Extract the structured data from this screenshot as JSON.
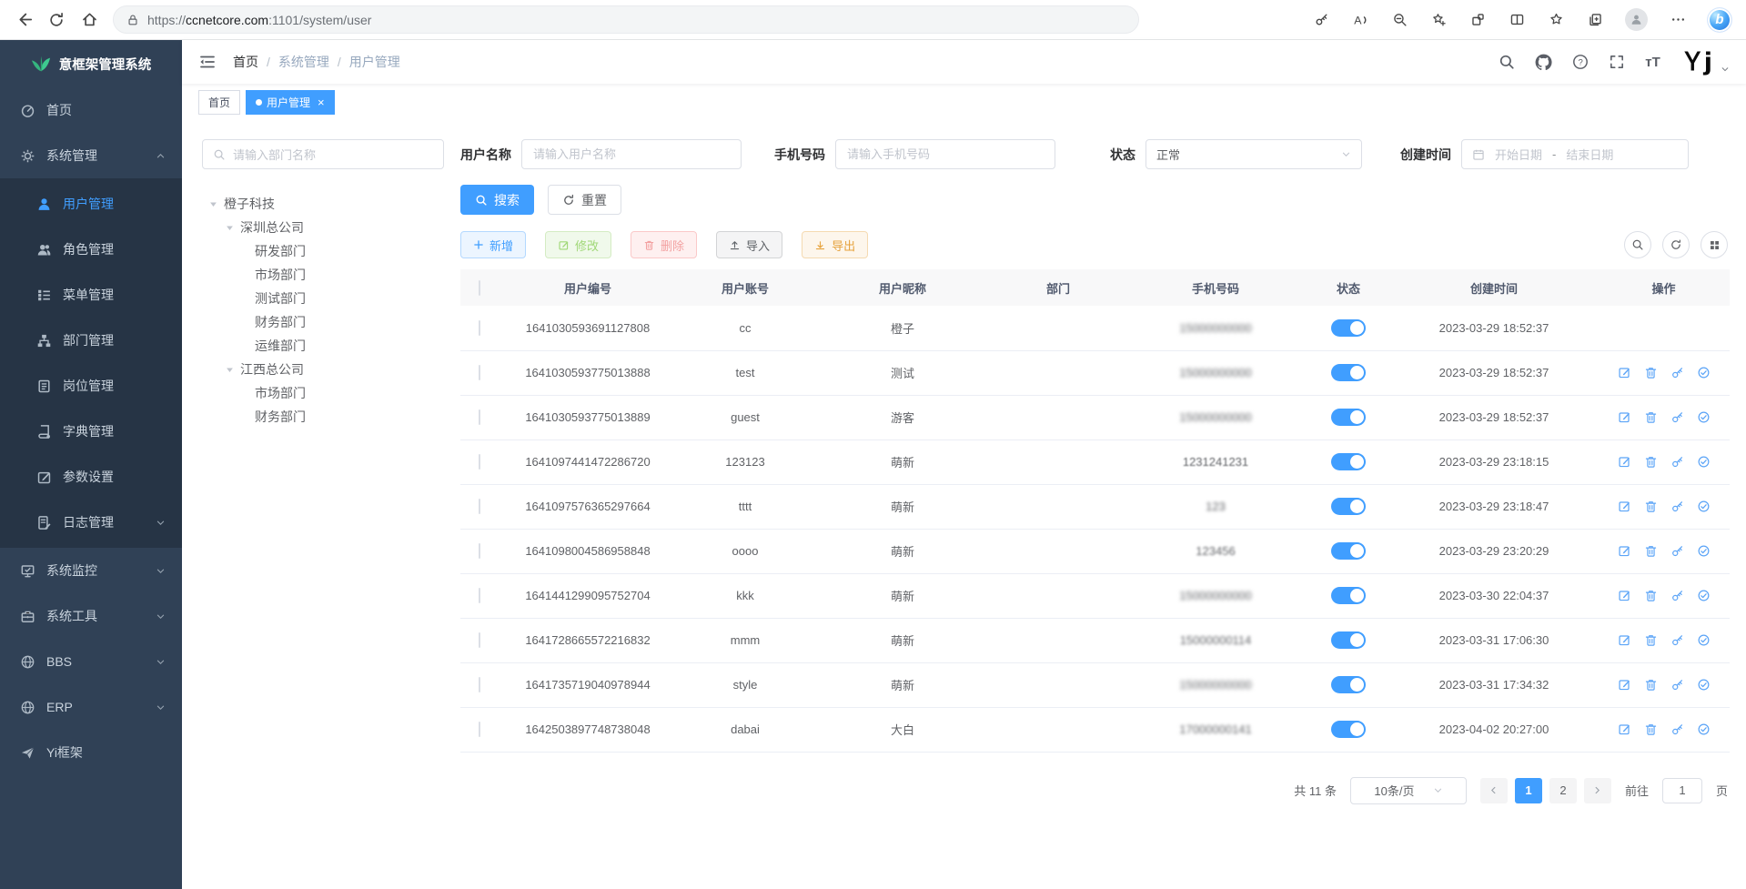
{
  "browser": {
    "url": {
      "scheme": "https://",
      "host": "ccnetcore.com",
      "path": ":1101/system/user"
    },
    "icons": [
      "back",
      "refresh",
      "home",
      "lock",
      "password",
      "read-aloud",
      "zoom-out",
      "add-favorite",
      "extensions",
      "split-screen",
      "favorites",
      "collections",
      "profile",
      "more",
      "copilot"
    ],
    "copilot_letter": "b"
  },
  "colors": {
    "accent": "#409EFF",
    "sidebar_bg": "#304156",
    "submenu_bg": "#263445",
    "logo_green": "#35b47f",
    "success": "#67C23A",
    "danger": "#F56C6C",
    "warning": "#E6A23C"
  },
  "app": {
    "logo_title": "意框架管理系统",
    "sidebar": {
      "items": [
        {
          "label": "首页",
          "icon": "dashboard"
        },
        {
          "label": "系统管理",
          "icon": "gear",
          "expanded": true,
          "children": [
            {
              "label": "用户管理",
              "icon": "user",
              "active": true
            },
            {
              "label": "角色管理",
              "icon": "roles"
            },
            {
              "label": "菜单管理",
              "icon": "menulist"
            },
            {
              "label": "部门管理",
              "icon": "dept"
            },
            {
              "label": "岗位管理",
              "icon": "post"
            },
            {
              "label": "字典管理",
              "icon": "dict"
            },
            {
              "label": "参数设置",
              "icon": "config"
            },
            {
              "label": "日志管理",
              "icon": "log",
              "chevron": true
            }
          ]
        },
        {
          "label": "系统监控",
          "icon": "monitor",
          "chevron": true
        },
        {
          "label": "系统工具",
          "icon": "tool",
          "chevron": true
        },
        {
          "label": "BBS",
          "icon": "globe",
          "chevron": true
        },
        {
          "label": "ERP",
          "icon": "globe",
          "chevron": true
        },
        {
          "label": "Yi框架",
          "icon": "send"
        }
      ]
    },
    "breadcrumb": [
      "首页",
      "系统管理",
      "用户管理"
    ],
    "tabs": {
      "home": "首页",
      "active": "用户管理"
    },
    "filters": {
      "dept_search_placeholder": "请输入部门名称",
      "username_label": "用户名称",
      "username_placeholder": "请输入用户名称",
      "phone_label": "手机号码",
      "phone_placeholder": "请输入手机号码",
      "status_label": "状态",
      "status_value": "正常",
      "created_label": "创建时间",
      "date_start_placeholder": "开始日期",
      "date_separator": "-",
      "date_end_placeholder": "结束日期",
      "search_button": "搜索",
      "reset_button": "重置"
    },
    "tree": [
      {
        "label": "橙子科技",
        "level": 0,
        "caret": true
      },
      {
        "label": "深圳总公司",
        "level": 1,
        "caret": true
      },
      {
        "label": "研发部门",
        "level": 2
      },
      {
        "label": "市场部门",
        "level": 2
      },
      {
        "label": "测试部门",
        "level": 2
      },
      {
        "label": "财务部门",
        "level": 2
      },
      {
        "label": "运维部门",
        "level": 2
      },
      {
        "label": "江西总公司",
        "level": 1,
        "caret": true
      },
      {
        "label": "市场部门",
        "level": 2
      },
      {
        "label": "财务部门",
        "level": 2
      }
    ],
    "toolbar": {
      "add": "新增",
      "edit": "修改",
      "delete": "删除",
      "import": "导入",
      "export": "导出",
      "view_icons": [
        "search",
        "refresh",
        "grid"
      ]
    },
    "table": {
      "columns": [
        "用户编号",
        "用户账号",
        "用户昵称",
        "部门",
        "手机号码",
        "状态",
        "创建时间",
        "操作"
      ],
      "op_icons": [
        "edit",
        "delete",
        "key",
        "check-circle"
      ],
      "rows": [
        {
          "id": "1641030593691127808",
          "account": "cc",
          "nickname": "橙子",
          "dept": "",
          "phone": "15000000000",
          "blur": 2.4,
          "status_on": true,
          "created": "2023-03-29 18:52:37",
          "ops": false
        },
        {
          "id": "1641030593775013888",
          "account": "test",
          "nickname": "测试",
          "dept": "",
          "phone": "15000000000",
          "blur": 2.0,
          "status_on": true,
          "created": "2023-03-29 18:52:37",
          "ops": true
        },
        {
          "id": "1641030593775013889",
          "account": "guest",
          "nickname": "游客",
          "dept": "",
          "phone": "15000000000",
          "blur": 2.2,
          "status_on": true,
          "created": "2023-03-29 18:52:37",
          "ops": true
        },
        {
          "id": "1641097441472286720",
          "account": "123123",
          "nickname": "萌新",
          "dept": "",
          "phone": "1231241231",
          "blur": 0.7,
          "status_on": true,
          "created": "2023-03-29 23:18:15",
          "ops": true
        },
        {
          "id": "1641097576365297664",
          "account": "tttt",
          "nickname": "萌新",
          "dept": "",
          "phone": "123",
          "blur": 1.8,
          "status_on": true,
          "created": "2023-03-29 23:18:47",
          "ops": true
        },
        {
          "id": "1641098004586958848",
          "account": "oooo",
          "nickname": "萌新",
          "dept": "",
          "phone": "123456",
          "blur": 1.2,
          "status_on": true,
          "created": "2023-03-29 23:20:29",
          "ops": true
        },
        {
          "id": "1641441299095752704",
          "account": "kkk",
          "nickname": "萌新",
          "dept": "",
          "phone": "15000000000",
          "blur": 2.2,
          "status_on": true,
          "created": "2023-03-30 22:04:37",
          "ops": true
        },
        {
          "id": "1641728665572216832",
          "account": "mmm",
          "nickname": "萌新",
          "dept": "",
          "phone": "15000000114",
          "blur": 1.6,
          "status_on": true,
          "created": "2023-03-31 17:06:30",
          "ops": true
        },
        {
          "id": "1641735719040978944",
          "account": "style",
          "nickname": "萌新",
          "dept": "",
          "phone": "15000000000",
          "blur": 2.3,
          "status_on": true,
          "created": "2023-03-31 17:34:32",
          "ops": true
        },
        {
          "id": "1642503897748738048",
          "account": "dabai",
          "nickname": "大白",
          "dept": "",
          "phone": "17000000141",
          "blur": 1.8,
          "status_on": true,
          "created": "2023-04-02 20:27:00",
          "ops": true
        }
      ]
    },
    "pagination": {
      "total_label": "共 11 条",
      "page_size": "10条/页",
      "pages": [
        "1",
        "2"
      ],
      "active_page": "1",
      "goto_label": "前往",
      "goto_value": "1",
      "unit_label": "页"
    }
  }
}
